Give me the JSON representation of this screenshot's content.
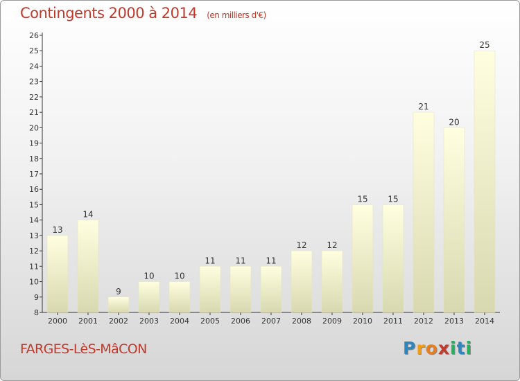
{
  "title": "Contingents 2000 à 2014",
  "subtitle": "(en milliers d'€)",
  "location": "FARGES-LèS-MâCON",
  "logo": {
    "letters": [
      "P",
      "r",
      "o",
      "x",
      "i",
      "t",
      "i"
    ],
    "colors": [
      "#2e86c1",
      "#f39c12",
      "#e67e22",
      "#c0392b",
      "#27ae60",
      "#2e86c1",
      "#27ae60"
    ]
  },
  "colors": {
    "accent": "#c0392b",
    "bar_top": "#ffffe0",
    "bar_bottom": "#d8d8b0"
  },
  "chart_data": {
    "type": "bar",
    "categories": [
      "2000",
      "2001",
      "2002",
      "2003",
      "2004",
      "2005",
      "2006",
      "2007",
      "2008",
      "2009",
      "2010",
      "2011",
      "2012",
      "2013",
      "2014"
    ],
    "values": [
      13,
      14,
      9,
      10,
      10,
      11,
      11,
      11,
      12,
      12,
      15,
      15,
      21,
      20,
      25
    ],
    "title": "Contingents 2000 à 2014",
    "subtitle": "(en milliers d'€)",
    "ylim": [
      8,
      26
    ],
    "yticks": [
      8,
      9,
      10,
      11,
      12,
      13,
      14,
      15,
      16,
      17,
      18,
      19,
      20,
      21,
      22,
      23,
      24,
      25,
      26
    ],
    "grid": false,
    "data_labels": true
  }
}
